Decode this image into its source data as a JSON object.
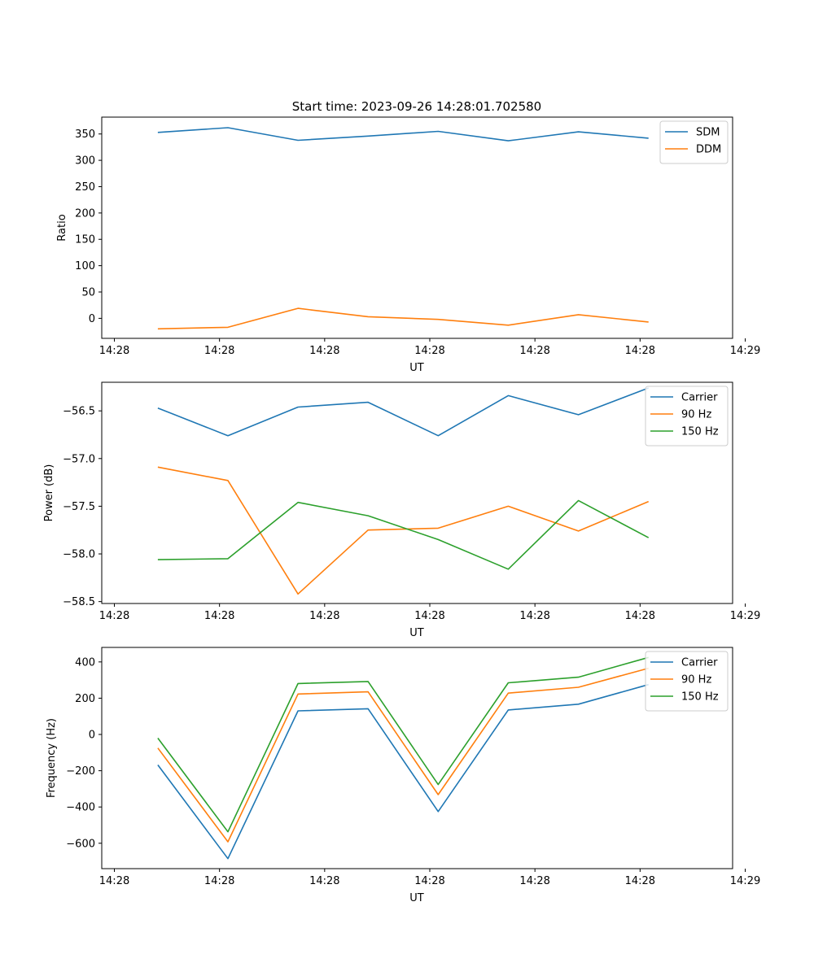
{
  "chart_data": [
    {
      "type": "line",
      "title": "Start time: 2023-09-26 14:28:01.702580",
      "xlabel": "UT",
      "ylabel": "Ratio",
      "x": [
        1,
        2,
        3,
        4,
        5,
        6,
        7,
        8
      ],
      "xlim": [
        0.2,
        9.2
      ],
      "x_ticks": [
        0.38,
        1.88,
        3.38,
        4.88,
        6.38,
        7.88,
        9.38
      ],
      "x_tick_labels": [
        "14:28",
        "14:28",
        "14:28",
        "14:28",
        "14:28",
        "14:28",
        "14:29"
      ],
      "ylim": [
        -38,
        382
      ],
      "y_ticks": [
        0,
        50,
        100,
        150,
        200,
        250,
        300,
        350
      ],
      "y_tick_labels": [
        "0",
        "50",
        "100",
        "150",
        "200",
        "250",
        "300",
        "350"
      ],
      "legend_position": "top-right",
      "series": [
        {
          "name": "SDM",
          "color": "#1f77b4",
          "values": [
            353,
            362,
            338,
            346,
            355,
            337,
            354,
            342
          ]
        },
        {
          "name": "DDM",
          "color": "#ff7f0e",
          "values": [
            -20,
            -17,
            19,
            3,
            -2,
            -13,
            7,
            -7
          ]
        }
      ]
    },
    {
      "type": "line",
      "title": "",
      "xlabel": "UT",
      "ylabel": "Power (dB)",
      "x": [
        1,
        2,
        3,
        4,
        5,
        6,
        7,
        8
      ],
      "xlim": [
        0.2,
        9.2
      ],
      "x_ticks": [
        0.38,
        1.88,
        3.38,
        4.88,
        6.38,
        7.88,
        9.38
      ],
      "x_tick_labels": [
        "14:28",
        "14:28",
        "14:28",
        "14:28",
        "14:28",
        "14:28",
        "14:29"
      ],
      "ylim": [
        -58.52,
        -56.2
      ],
      "y_ticks": [
        -58.5,
        -58.0,
        -57.5,
        -57.0,
        -56.5
      ],
      "y_tick_labels": [
        "−58.5",
        "−58.0",
        "−57.5",
        "−57.0",
        "−56.5"
      ],
      "legend_position": "top-right",
      "series": [
        {
          "name": "Carrier",
          "color": "#1f77b4",
          "values": [
            -56.47,
            -56.76,
            -56.46,
            -56.41,
            -56.76,
            -56.34,
            -56.54,
            -56.26
          ]
        },
        {
          "name": "90 Hz",
          "color": "#ff7f0e",
          "values": [
            -57.09,
            -57.23,
            -58.42,
            -57.75,
            -57.73,
            -57.5,
            -57.76,
            -57.45
          ]
        },
        {
          "name": "150 Hz",
          "color": "#2ca02c",
          "values": [
            -58.06,
            -58.05,
            -57.46,
            -57.6,
            -57.85,
            -58.16,
            -57.44,
            -57.83
          ]
        }
      ]
    },
    {
      "type": "line",
      "title": "",
      "xlabel": "UT",
      "ylabel": "Frequency (Hz)",
      "x": [
        1,
        2,
        3,
        4,
        5,
        6,
        7,
        8
      ],
      "xlim": [
        0.2,
        9.2
      ],
      "x_ticks": [
        0.38,
        1.88,
        3.38,
        4.88,
        6.38,
        7.88,
        9.38
      ],
      "x_tick_labels": [
        "14:28",
        "14:28",
        "14:28",
        "14:28",
        "14:28",
        "14:28",
        "14:29"
      ],
      "ylim": [
        -740,
        480
      ],
      "y_ticks": [
        -600,
        -400,
        -200,
        0,
        200,
        400
      ],
      "y_tick_labels": [
        "−600",
        "−400",
        "−200",
        "0",
        "200",
        "400"
      ],
      "legend_position": "top-right",
      "series": [
        {
          "name": "Carrier",
          "color": "#1f77b4",
          "values": [
            -168,
            -685,
            130,
            142,
            -425,
            135,
            167,
            275
          ]
        },
        {
          "name": "90 Hz",
          "color": "#ff7f0e",
          "values": [
            -75,
            -592,
            223,
            235,
            -332,
            228,
            260,
            365
          ]
        },
        {
          "name": "150 Hz",
          "color": "#2ca02c",
          "values": [
            -20,
            -537,
            281,
            292,
            -276,
            285,
            316,
            425
          ]
        }
      ]
    }
  ]
}
